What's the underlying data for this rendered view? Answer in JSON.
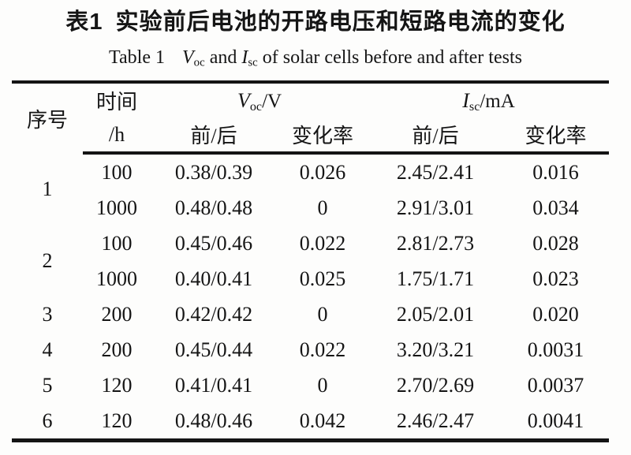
{
  "title": {
    "zh_label": "表1",
    "zh_text": "实验前后电池的开路电压和短路电流的变化"
  },
  "subtitle": {
    "prefix": "Table 1",
    "voc_symbol": "V",
    "voc_subscript": "oc",
    "and_text": " and ",
    "isc_symbol": "I",
    "isc_subscript": "sc",
    "suffix": " of solar cells before and after tests"
  },
  "table": {
    "header": {
      "seq": "序号",
      "time_line1": "时间",
      "time_line2": "/h",
      "voc_symbol": "V",
      "voc_subscript": "oc",
      "voc_unit": "/V",
      "isc_symbol": "I",
      "isc_subscript": "sc",
      "isc_unit": "/mA",
      "voc_before_after": "前/后",
      "voc_change_rate": "变化率",
      "isc_before_after": "前/后",
      "isc_change_rate": "变化率"
    },
    "rows": [
      {
        "seq": "1",
        "time": "100",
        "voc_ba": "0.38/0.39",
        "voc_cr": "0.026",
        "isc_ba": "2.45/2.41",
        "isc_cr": "0.016"
      },
      {
        "time": "1000",
        "voc_ba": "0.48/0.48",
        "voc_cr": "0",
        "isc_ba": "2.91/3.01",
        "isc_cr": "0.034"
      },
      {
        "seq": "2",
        "time": "100",
        "voc_ba": "0.45/0.46",
        "voc_cr": "0.022",
        "isc_ba": "2.81/2.73",
        "isc_cr": "0.028"
      },
      {
        "time": "1000",
        "voc_ba": "0.40/0.41",
        "voc_cr": "0.025",
        "isc_ba": "1.75/1.71",
        "isc_cr": "0.023"
      },
      {
        "seq": "3",
        "time": "200",
        "voc_ba": "0.42/0.42",
        "voc_cr": "0",
        "isc_ba": "2.05/2.01",
        "isc_cr": "0.020"
      },
      {
        "seq": "4",
        "time": "200",
        "voc_ba": "0.45/0.44",
        "voc_cr": "0.022",
        "isc_ba": "3.20/3.21",
        "isc_cr": "0.0031"
      },
      {
        "seq": "5",
        "time": "120",
        "voc_ba": "0.41/0.41",
        "voc_cr": "0",
        "isc_ba": "2.70/2.69",
        "isc_cr": "0.0037"
      },
      {
        "seq": "6",
        "time": "120",
        "voc_ba": "0.48/0.46",
        "voc_cr": "0.042",
        "isc_ba": "2.46/2.47",
        "isc_cr": "0.0041"
      }
    ]
  },
  "colors": {
    "background": "#fdfdfc",
    "text": "#151515",
    "rule": "#141414"
  }
}
